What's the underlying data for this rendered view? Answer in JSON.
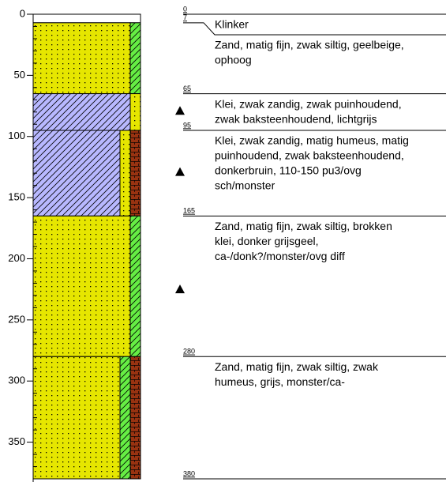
{
  "depth_axis": {
    "lim": [
      0,
      380
    ],
    "ticks": [
      0,
      50,
      100,
      150,
      200,
      250,
      300,
      350
    ],
    "minor_ticks": [
      10,
      20,
      30,
      40,
      60,
      70,
      80,
      90,
      110,
      120,
      130,
      140,
      160,
      170,
      180,
      190,
      210,
      220,
      230,
      240,
      260,
      270,
      280,
      290,
      310,
      320,
      330,
      340,
      360,
      370
    ]
  },
  "boundaries": [
    0,
    7,
    65,
    95,
    165,
    280,
    380
  ],
  "layers": [
    {
      "description": [
        "Klinker"
      ],
      "fill": []
    },
    {
      "description": [
        "Zand, matig fijn, zwak siltig, geelbeige,",
        "ophoog"
      ],
      "fill": [
        {
          "color": "#e6e600",
          "hatch": "dots"
        },
        {
          "color": "#66ee44",
          "hatch": "diagonal"
        }
      ]
    },
    {
      "description": [
        "Klei, zwak zandig, zwak puinhoudend,",
        "zwak baksteenhoudend, lichtgrijs"
      ],
      "fill": [
        {
          "color": "#b8b8ff",
          "hatch": "diagonal"
        },
        {
          "color": "#e6e600",
          "hatch": "dots"
        }
      ]
    },
    {
      "description": [
        "Klei, zwak zandig, matig humeus, matig",
        "puinhoudend, zwak baksteenhoudend,",
        "donkerbruin, 110-150 pu3/ovg",
        "sch/monster"
      ],
      "fill": [
        {
          "color": "#b8b8ff",
          "hatch": "diagonal"
        },
        {
          "color": "#e6e600",
          "hatch": "dots"
        },
        {
          "color": "#993311",
          "hatch": "bricks"
        }
      ]
    },
    {
      "description": [
        "Zand, matig fijn, zwak siltig, brokken",
        "klei, donker grijsgeel,",
        "ca-/donk?/monster/ovg diff"
      ],
      "fill": [
        {
          "color": "#e6e600",
          "hatch": "dots"
        },
        {
          "color": "#66ee44",
          "hatch": "diagonal"
        }
      ]
    },
    {
      "description": [
        "Zand, matig fijn, zwak siltig, zwak",
        "humeus, grijs, monster/ca-"
      ],
      "fill": [
        {
          "color": "#e6e600",
          "hatch": "dots"
        },
        {
          "color": "#66ee44",
          "hatch": "diagonal"
        },
        {
          "color": "#993311",
          "hatch": "bricks"
        }
      ]
    }
  ],
  "samples": [
    79,
    129,
    225
  ]
}
